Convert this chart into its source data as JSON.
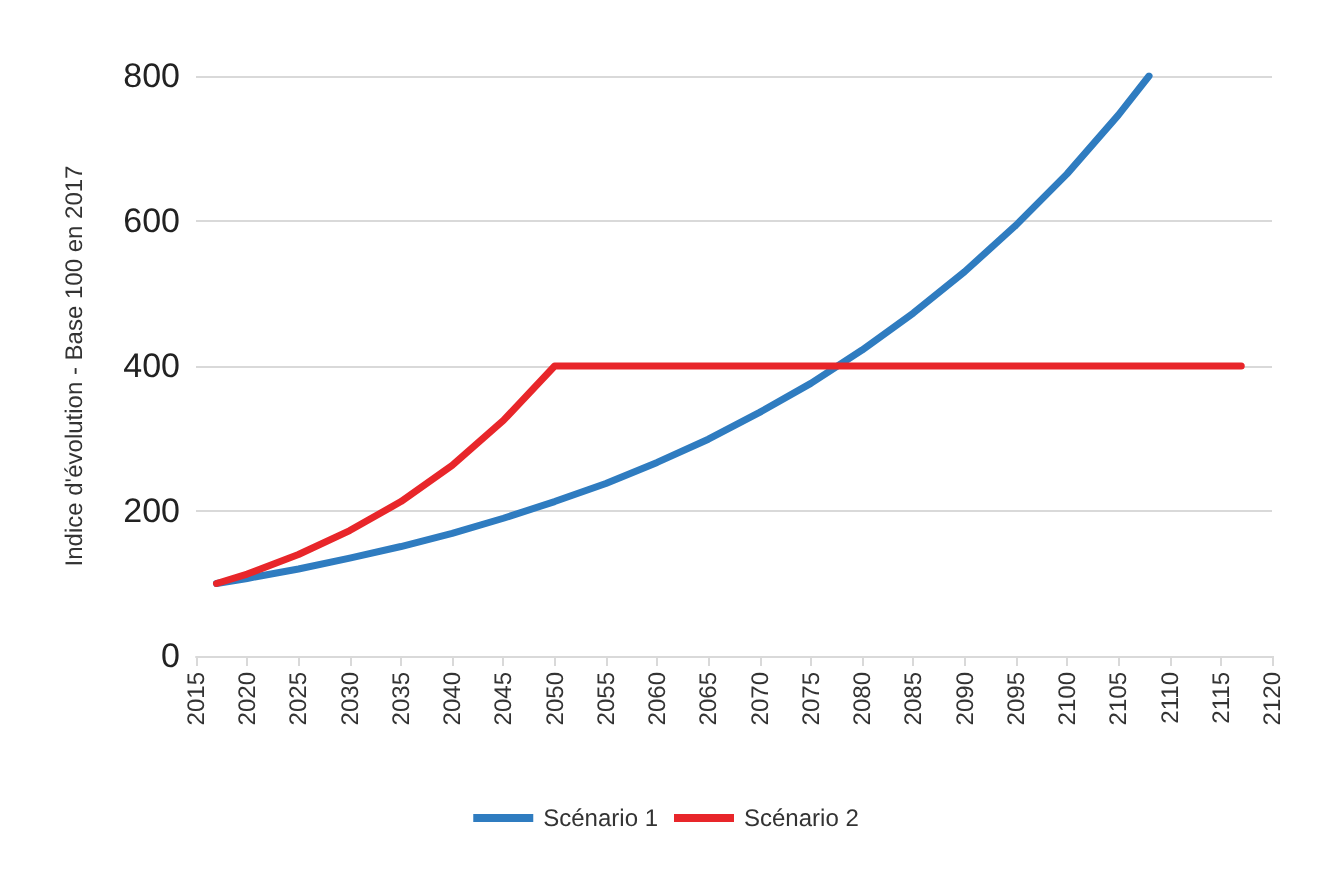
{
  "chart_data": {
    "type": "line",
    "ylabel": "Indice d'évolution - Base 100 en 2017",
    "xlim": [
      2015,
      2120
    ],
    "xticks": [
      2015,
      2020,
      2025,
      2030,
      2035,
      2040,
      2045,
      2050,
      2055,
      2060,
      2065,
      2070,
      2075,
      2080,
      2085,
      2090,
      2095,
      2100,
      2105,
      2110,
      2115,
      2120
    ],
    "ylim": [
      0,
      800
    ],
    "yticks": [
      0,
      200,
      400,
      600,
      800
    ],
    "grid": "y",
    "legend": "bottom",
    "marker": "none",
    "line_style": "solid",
    "series": [
      {
        "name": "Scénario 1",
        "color": "#2f7cc0",
        "x": [
          2017,
          2020,
          2025,
          2030,
          2035,
          2040,
          2045,
          2050,
          2055,
          2060,
          2065,
          2070,
          2075,
          2080,
          2085,
          2090,
          2095,
          2100,
          2105,
          2108
        ],
        "values": [
          100,
          107,
          120,
          135,
          151,
          169,
          190,
          213,
          238,
          267,
          299,
          336,
          376,
          422,
          473,
          530,
          594,
          665,
          746,
          800
        ]
      },
      {
        "name": "Scénario 2",
        "color": "#e8262a",
        "x": [
          2017,
          2020,
          2025,
          2030,
          2035,
          2040,
          2045,
          2050,
          2117
        ],
        "values": [
          100,
          113,
          140,
          173,
          213,
          263,
          325,
          400,
          400
        ]
      }
    ]
  }
}
